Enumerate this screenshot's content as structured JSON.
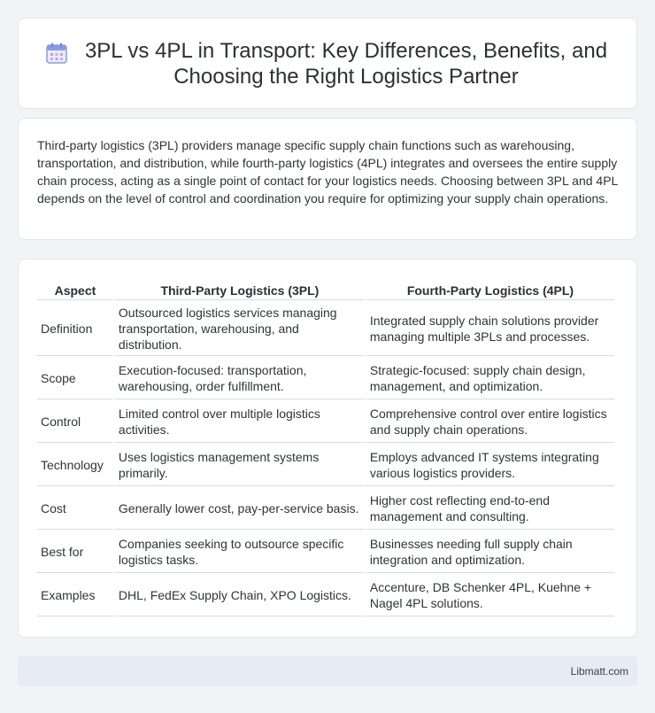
{
  "header": {
    "title": "3PL vs 4PL in Transport: Key Differences, Benefits, and Choosing the Right Logistics Partner",
    "icon": "calendar-icon"
  },
  "intro": {
    "text": "Third-party logistics (3PL) providers manage specific supply chain functions such as warehousing, transportation, and distribution, while fourth-party logistics (4PL) integrates and oversees the entire supply chain process, acting as a single point of contact for your logistics needs. Choosing between 3PL and 4PL depends on the level of control and coordination you require for optimizing your supply chain operations."
  },
  "table": {
    "headers": [
      "Aspect",
      "Third-Party Logistics (3PL)",
      "Fourth-Party Logistics (4PL)"
    ],
    "rows": [
      [
        "Definition",
        "Outsourced logistics services managing transportation, warehousing, and distribution.",
        "Integrated supply chain solutions provider managing multiple 3PLs and processes."
      ],
      [
        "Scope",
        "Execution-focused: transportation, warehousing, order fulfillment.",
        "Strategic-focused: supply chain design, management, and optimization."
      ],
      [
        "Control",
        "Limited control over multiple logistics activities.",
        "Comprehensive control over entire logistics and supply chain operations."
      ],
      [
        "Technology",
        "Uses logistics management systems primarily.",
        "Employs advanced IT systems integrating various logistics providers."
      ],
      [
        "Cost",
        "Generally lower cost, pay-per-service basis.",
        "Higher cost reflecting end-to-end management and consulting."
      ],
      [
        "Best for",
        "Companies seeking to outsource specific logistics tasks.",
        "Businesses needing full supply chain integration and optimization."
      ],
      [
        "Examples",
        "DHL, FedEx Supply Chain, XPO Logistics.",
        "Accenture, DB Schenker 4PL, Kuehne + Nagel 4PL solutions."
      ]
    ]
  },
  "footer": {
    "text": "Libmatt.com"
  },
  "colors": {
    "background": "#f1f3f6",
    "card": "#ffffff",
    "footer": "#e6ebf5",
    "icon_accent": "#7b8de0"
  }
}
